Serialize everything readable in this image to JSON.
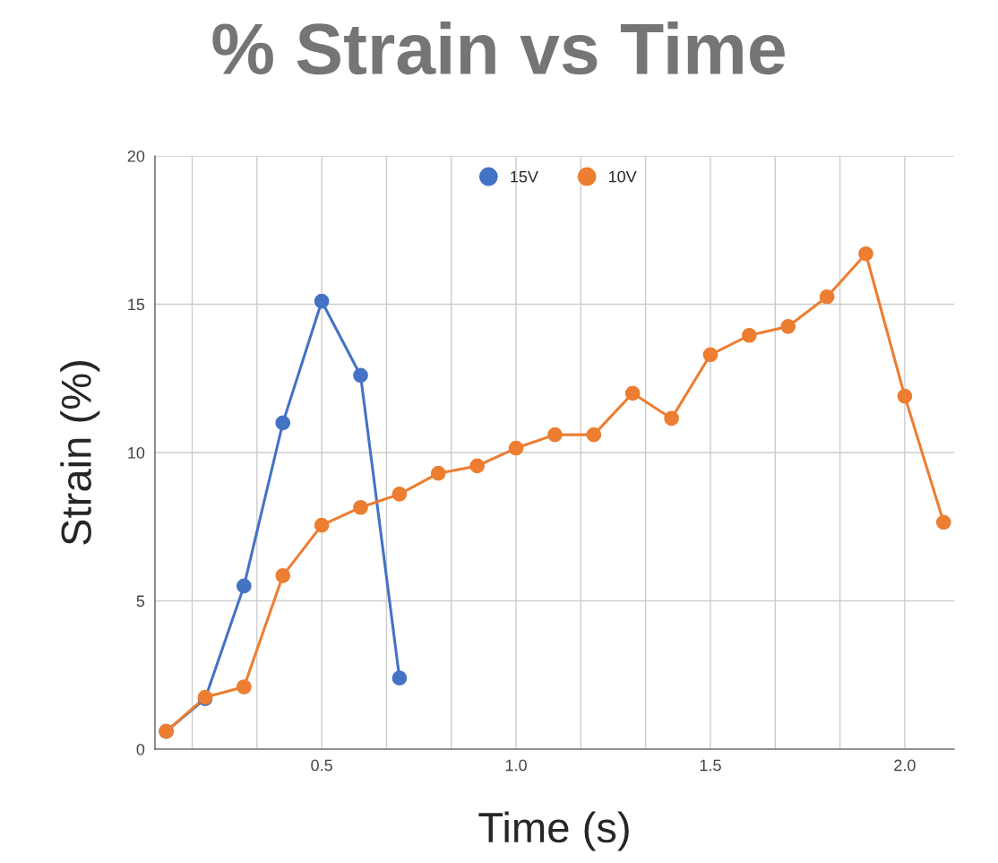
{
  "chart_data": {
    "type": "line",
    "title": "% Strain vs Time",
    "xlabel": "Time (s)",
    "ylabel": "Strain (%)",
    "xlim": [
      0.071,
      2.127
    ],
    "ylim": [
      0,
      20
    ],
    "xticks": [
      {
        "value": 0.1667,
        "label": null
      },
      {
        "value": 0.3333,
        "label": null
      },
      {
        "value": 0.5,
        "label": "0.5"
      },
      {
        "value": 0.6667,
        "label": null
      },
      {
        "value": 0.8333,
        "label": null
      },
      {
        "value": 1.0,
        "label": "1.0"
      },
      {
        "value": 1.1667,
        "label": null
      },
      {
        "value": 1.3333,
        "label": null
      },
      {
        "value": 1.5,
        "label": "1.5"
      },
      {
        "value": 1.6667,
        "label": null
      },
      {
        "value": 1.8333,
        "label": null
      },
      {
        "value": 2.0,
        "label": "2.0"
      }
    ],
    "yticks": [
      0,
      5,
      10,
      15,
      20
    ],
    "grid": true,
    "legend": "top",
    "marker": "circle",
    "line_style": "solid",
    "series": [
      {
        "name": "15V",
        "color": "#4472c4",
        "x": [
          0.1,
          0.2,
          0.3,
          0.4,
          0.5,
          0.6,
          0.7
        ],
        "values": [
          0.6,
          1.7,
          5.5,
          11.0,
          15.1,
          12.6,
          2.4
        ]
      },
      {
        "name": "10V",
        "color": "#ed7d31",
        "x": [
          0.1,
          0.2,
          0.3,
          0.4,
          0.5,
          0.6,
          0.7,
          0.8,
          0.9,
          1.0,
          1.1,
          1.2,
          1.3,
          1.4,
          1.5,
          1.6,
          1.7,
          1.8,
          1.9,
          2.0,
          2.1
        ],
        "values": [
          0.6,
          1.75,
          2.1,
          5.85,
          7.55,
          8.15,
          8.6,
          9.3,
          9.55,
          10.15,
          10.6,
          10.6,
          12.0,
          11.15,
          13.3,
          13.95,
          14.25,
          15.25,
          16.7,
          11.9,
          7.65
        ]
      }
    ]
  }
}
